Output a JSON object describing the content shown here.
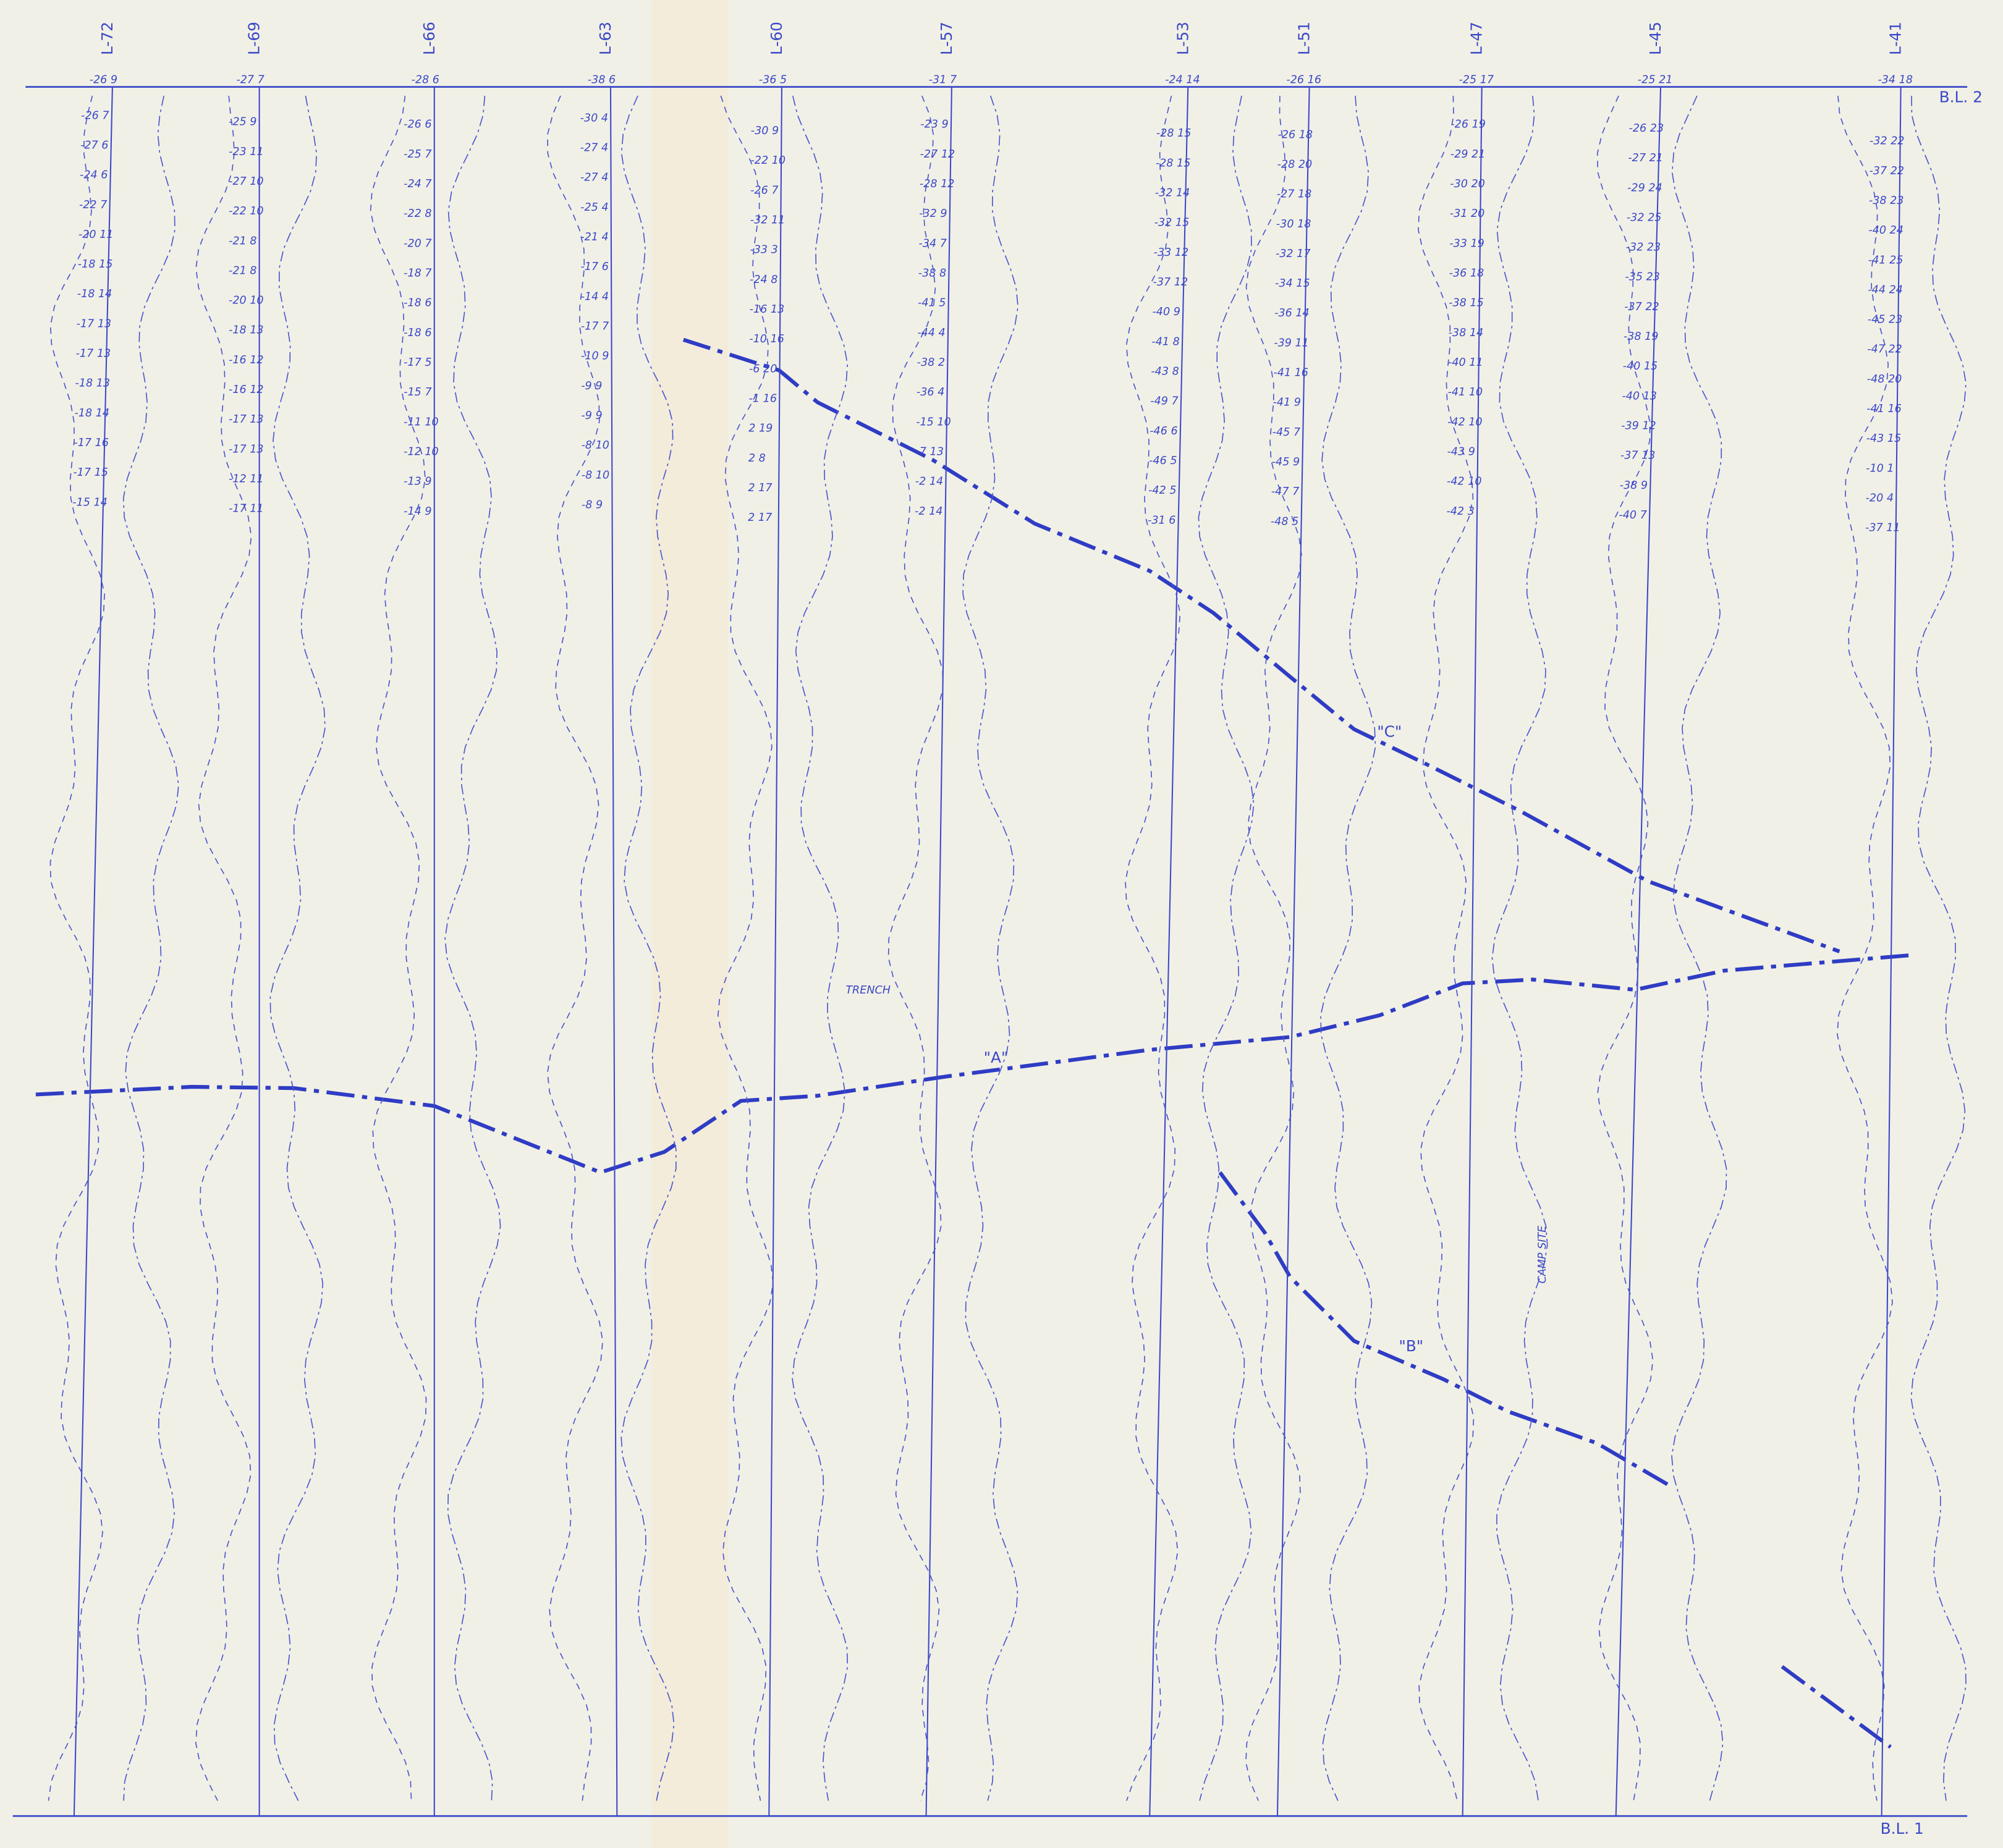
{
  "baselines": [
    "B.L. 2",
    "B.L. 1"
  ],
  "annotations": {
    "a": "\"A\"",
    "b": "\"B\"",
    "c": "\"C\"",
    "trench": "TRENCH",
    "camp": "CAMP SITE"
  },
  "lines": [
    {
      "label": "L-72",
      "top": "-26 9",
      "readings": [
        "-26 7",
        "-27 6",
        "-24 6",
        "-22 7",
        "-20 11",
        "-18 15",
        "-18 14",
        "-17 13",
        "-17 13",
        "-18 13",
        "-18 14",
        "-17 16",
        "-17 15",
        "-15 14"
      ]
    },
    {
      "label": "L-69",
      "top": "-27 7",
      "readings": [
        "-25 9",
        "-23 11",
        "-27 10",
        "-22 10",
        "-21 8",
        "-21 8",
        "-20 10",
        "-18 13",
        "-16 12",
        "-16 12",
        "-17 13",
        "-17 13",
        "-12 11",
        "-17 11"
      ]
    },
    {
      "label": "L-66",
      "top": "-28 6",
      "readings": [
        "-26 6",
        "-25 7",
        "-24 7",
        "-22 8",
        "-20 7",
        "-18 7",
        "-18 6",
        "-18 6",
        "-17 5",
        "-15 7",
        "-11 10",
        "-12 10",
        "-13 9",
        "-14 9"
      ]
    },
    {
      "label": "L-63",
      "top": "-38 6",
      "readings": [
        "-30 4",
        "-27 4",
        "-27 4",
        "-25 4",
        "-21 4",
        "-17 6",
        "-14 4",
        "-17 7",
        "-10 9",
        "-9 9",
        "-9 9",
        "-8 10",
        "-8 10",
        "-8 9"
      ]
    },
    {
      "label": "L-60",
      "top": "-36 5",
      "readings": [
        "-30 9",
        "-22 10",
        "-26 7",
        "-32 11",
        "-33 3",
        "-24 8",
        "-16 13",
        "-10 16",
        "-6 20",
        "-1 16",
        "2 19",
        "2 8",
        "2 17",
        "2 17"
      ]
    },
    {
      "label": "L-57",
      "top": "-31 7",
      "readings": [
        "-23 9",
        "-27 12",
        "-28 12",
        "-32 9",
        "-34 7",
        "-38 8",
        "-41 5",
        "-44 4",
        "-38 2",
        "-36 4",
        "-15 10",
        "-7 13",
        "-2 14",
        "-2 14"
      ]
    },
    {
      "label": "L-53",
      "top": "-24 14",
      "readings": [
        "-28 15",
        "-28 15",
        "-32 14",
        "-32 15",
        "-33 12",
        "-37 12",
        "-40 9",
        "-41 8",
        "-43 8",
        "-49 7",
        "-46 6",
        "-46 5",
        "-42 5",
        "-31 6"
      ]
    },
    {
      "label": "L-51",
      "top": "-26 16",
      "readings": [
        "-26 18",
        "-28 20",
        "-27 18",
        "-30 18",
        "-32 17",
        "-34 15",
        "-36 14",
        "-39 11",
        "-41 16",
        "-41 9",
        "-45 7",
        "-45 9",
        "-47 7",
        "-48 5"
      ]
    },
    {
      "label": "L-47",
      "top": "-25 17",
      "readings": [
        "-26 19",
        "-29 21",
        "-30 20",
        "-31 20",
        "-33 19",
        "-36 18",
        "-38 15",
        "-38 14",
        "-40 11",
        "-41 10",
        "-42 10",
        "-43 9",
        "-42 10",
        "-42 3"
      ]
    },
    {
      "label": "L-45",
      "top": "-25 21",
      "readings": [
        "-26 23",
        "-27 21",
        "-29 24",
        "-32 25",
        "-32 23",
        "-35 23",
        "-37 22",
        "-38 19",
        "-40 15",
        "-40 13",
        "-39 12",
        "-37 13",
        "-38 9",
        "-40 7"
      ]
    },
    {
      "label": "L-41",
      "top": "-34 18",
      "readings": [
        "-32 22",
        "-37 22",
        "-38 23",
        "-40 24",
        "-41 25",
        "-44 24",
        "-45 23",
        "-47 22",
        "-48 20",
        "-41 16",
        "-43 15",
        "-10 1",
        "-20 4",
        "-37 11"
      ]
    }
  ]
}
